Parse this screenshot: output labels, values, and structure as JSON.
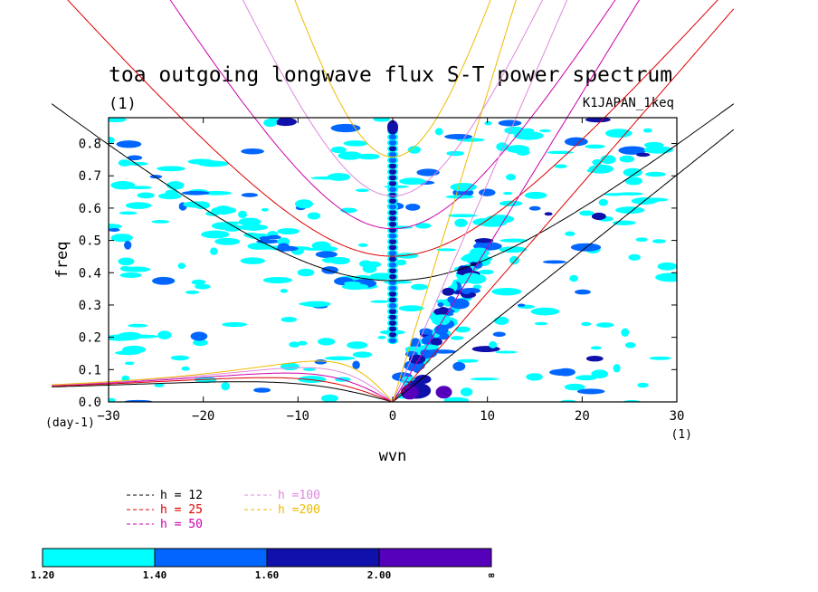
{
  "chart_data": {
    "type": "heatmap",
    "title": "toa outgoing longwave flux S-T power spectrum",
    "subtitle_left": "(1)",
    "subtitle_right": "K1JAPAN_1keq",
    "xlabel": "wvn",
    "ylabel": "freq",
    "x_unit": "(1)",
    "y_unit": "(day-1)",
    "xlim": [
      -30,
      30
    ],
    "ylim": [
      0,
      0.88
    ],
    "xticks": [
      -30,
      -20,
      -10,
      0,
      10,
      20,
      30
    ],
    "yticks": [
      0.0,
      0.1,
      0.2,
      0.3,
      0.4,
      0.5,
      0.6,
      0.7,
      0.8
    ],
    "xtick_labels": [
      "−30",
      "−20",
      "−10",
      "0",
      "10",
      "20",
      "30"
    ],
    "ytick_labels": [
      "0.0",
      "0.1",
      "0.2",
      "0.3",
      "0.4",
      "0.5",
      "0.6",
      "0.7",
      "0.8"
    ],
    "series": [
      {
        "name": "h = 12",
        "color": "#000000",
        "equivalent_depth": 12
      },
      {
        "name": "h = 25",
        "color": "#dd0000",
        "equivalent_depth": 25
      },
      {
        "name": "h = 50",
        "color": "#cc00aa",
        "equivalent_depth": 50
      },
      {
        "name": "h =100",
        "color": "#dd88dd",
        "equivalent_depth": 100
      },
      {
        "name": "h =200",
        "color": "#eebb00",
        "equivalent_depth": 200
      }
    ],
    "colorbar": {
      "levels": [
        "1.20",
        "1.40",
        "1.60",
        "2.00",
        "∞"
      ],
      "colors": [
        "#00ffff",
        "#0066ff",
        "#1010aa",
        "#5500bb"
      ]
    },
    "power_features": [
      {
        "label": "wavenumber 0 column",
        "wvn": 0,
        "freq_range": [
          0.18,
          0.88
        ],
        "level": 3
      },
      {
        "label": "low frequency maxima",
        "points": [
          [
            2.5,
            0.03
          ],
          [
            5.5,
            0.025
          ],
          [
            1.5,
            0.04
          ]
        ],
        "level": 4
      },
      {
        "label": "Kelvin band",
        "wvn_range": [
          1,
          10
        ],
        "freq_range": [
          0.02,
          0.55
        ],
        "level": 2
      }
    ]
  }
}
